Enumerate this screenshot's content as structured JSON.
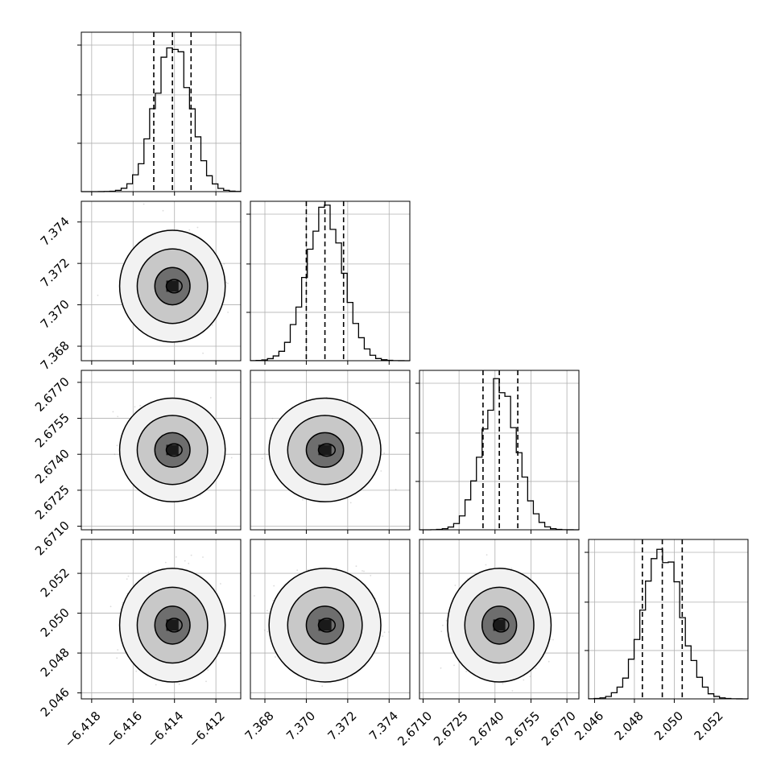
{
  "chart_data": {
    "type": "corner",
    "parameters": 4,
    "grid": true,
    "axes": [
      {
        "range": [
          -6.4185,
          -6.4108
        ],
        "ticks": [
          -6.418,
          -6.416,
          -6.414,
          -6.412
        ],
        "tick_labels": [
          "−6.418",
          "−6.416",
          "−6.414",
          "−6.412"
        ],
        "quantiles": [
          -6.415,
          -6.4141,
          -6.4132
        ],
        "peak": -6.4141,
        "sigma": 0.00085
      },
      {
        "range": [
          7.3673,
          7.375
        ],
        "ticks": [
          7.368,
          7.37,
          7.372,
          7.374
        ],
        "tick_labels": [
          "7.368",
          "7.370",
          "7.372",
          "7.374"
        ],
        "quantiles": [
          7.37,
          7.3709,
          7.3718
        ],
        "peak": 7.3709,
        "sigma": 0.0009
      },
      {
        "range": [
          2.67085,
          2.6775
        ],
        "ticks": [
          2.671,
          2.6725,
          2.674,
          2.6755,
          2.677
        ],
        "tick_labels": [
          "2.6710",
          "2.6725",
          "2.6740",
          "2.6755",
          "2.6770"
        ],
        "quantiles": [
          2.6735,
          2.67418,
          2.67495
        ],
        "peak": 2.67418,
        "sigma": 0.00072
      },
      {
        "range": [
          2.0457,
          2.0537
        ],
        "ticks": [
          2.046,
          2.048,
          2.05,
          2.052
        ],
        "tick_labels": [
          "2.046",
          "2.048",
          "2.050",
          "2.052"
        ],
        "quantiles": [
          2.0484,
          2.0494,
          2.0504
        ],
        "peak": 2.0494,
        "sigma": 0.00095
      }
    ],
    "hist_y_ticks": [
      0.33,
      0.66,
      1.0
    ],
    "contour_levels": [
      0.39,
      0.86,
      0.99
    ]
  }
}
